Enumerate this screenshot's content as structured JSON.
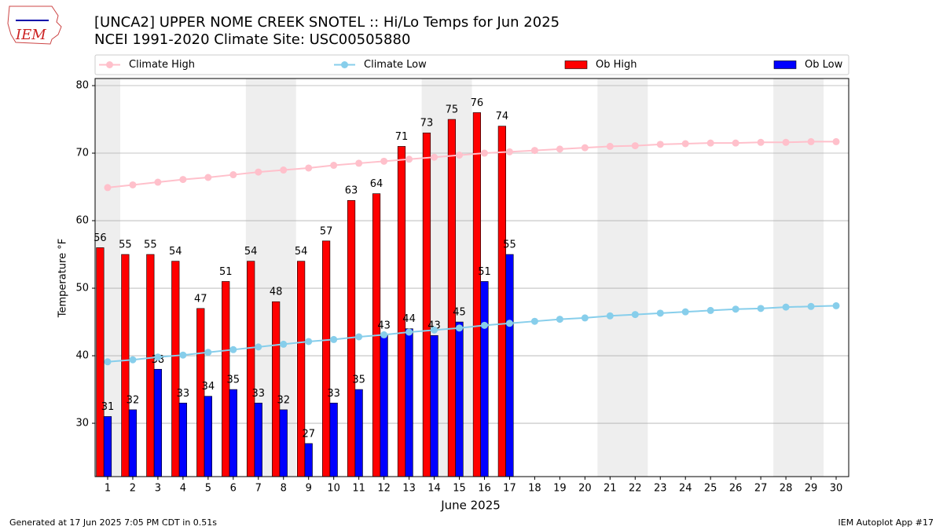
{
  "chart_data": {
    "type": "combo",
    "logo_text": "IEM",
    "title": "[UNCA2] UPPER NOME CREEK SNOTEL :: Hi/Lo Temps for Jun 2025",
    "subtitle": "NCEI 1991-2020 Climate Site: USC00505880",
    "xlabel": "June 2025",
    "ylabel": "Temperature °F",
    "footer_left": "Generated at 17 Jun 2025 7:05 PM CDT in 0.51s",
    "footer_right": "IEM Autoplot App #17",
    "x": [
      1,
      2,
      3,
      4,
      5,
      6,
      7,
      8,
      9,
      10,
      11,
      12,
      13,
      14,
      15,
      16,
      17,
      18,
      19,
      20,
      21,
      22,
      23,
      24,
      25,
      26,
      27,
      28,
      29,
      30
    ],
    "xlim": [
      0.5,
      30.5
    ],
    "xticks": [
      1,
      2,
      3,
      4,
      5,
      6,
      7,
      8,
      9,
      10,
      11,
      12,
      13,
      14,
      15,
      16,
      17,
      18,
      19,
      20,
      21,
      22,
      23,
      24,
      25,
      26,
      27,
      28,
      29,
      30
    ],
    "ylim": [
      22.1,
      81.05
    ],
    "yticks": [
      30,
      40,
      50,
      60,
      70,
      80
    ],
    "grid": true,
    "shaded_spans": [
      [
        0.5,
        1.5
      ],
      [
        6.5,
        8.5
      ],
      [
        13.5,
        15.5
      ],
      [
        20.5,
        22.5
      ],
      [
        27.5,
        29.5
      ]
    ],
    "shade_color": "#eeeeee",
    "legend": "top",
    "series": [
      {
        "name": "Climate High",
        "type": "line",
        "color": "pink",
        "values": [
          64.9,
          65.3,
          65.7,
          66.1,
          66.4,
          66.8,
          67.2,
          67.5,
          67.8,
          68.2,
          68.5,
          68.8,
          69.1,
          69.4,
          69.7,
          70.0,
          70.2,
          70.4,
          70.6,
          70.8,
          71.0,
          71.1,
          71.3,
          71.4,
          71.5,
          71.5,
          71.6,
          71.6,
          71.7,
          71.7
        ]
      },
      {
        "name": "Climate Low",
        "type": "line",
        "color": "skyblue",
        "values": [
          39.1,
          39.4,
          39.8,
          40.1,
          40.5,
          40.9,
          41.3,
          41.7,
          42.1,
          42.4,
          42.8,
          43.1,
          43.5,
          43.8,
          44.1,
          44.5,
          44.8,
          45.1,
          45.4,
          45.6,
          45.9,
          46.1,
          46.3,
          46.5,
          46.7,
          46.9,
          47.0,
          47.2,
          47.3,
          47.4
        ]
      },
      {
        "name": "Ob High",
        "type": "bar",
        "color": "red",
        "values": [
          56,
          55,
          55,
          54,
          47,
          51,
          54,
          48,
          54,
          57,
          63,
          64,
          71,
          73,
          75,
          76,
          74,
          null,
          null,
          null,
          null,
          null,
          null,
          null,
          null,
          null,
          null,
          null,
          null,
          null
        ]
      },
      {
        "name": "Ob Low",
        "type": "bar",
        "color": "blue",
        "values": [
          31,
          32,
          38,
          33,
          34,
          35,
          33,
          32,
          27,
          33,
          35,
          43,
          44,
          43,
          45,
          51,
          55,
          null,
          null,
          null,
          null,
          null,
          null,
          null,
          null,
          null,
          null,
          null,
          null,
          null
        ]
      }
    ]
  }
}
